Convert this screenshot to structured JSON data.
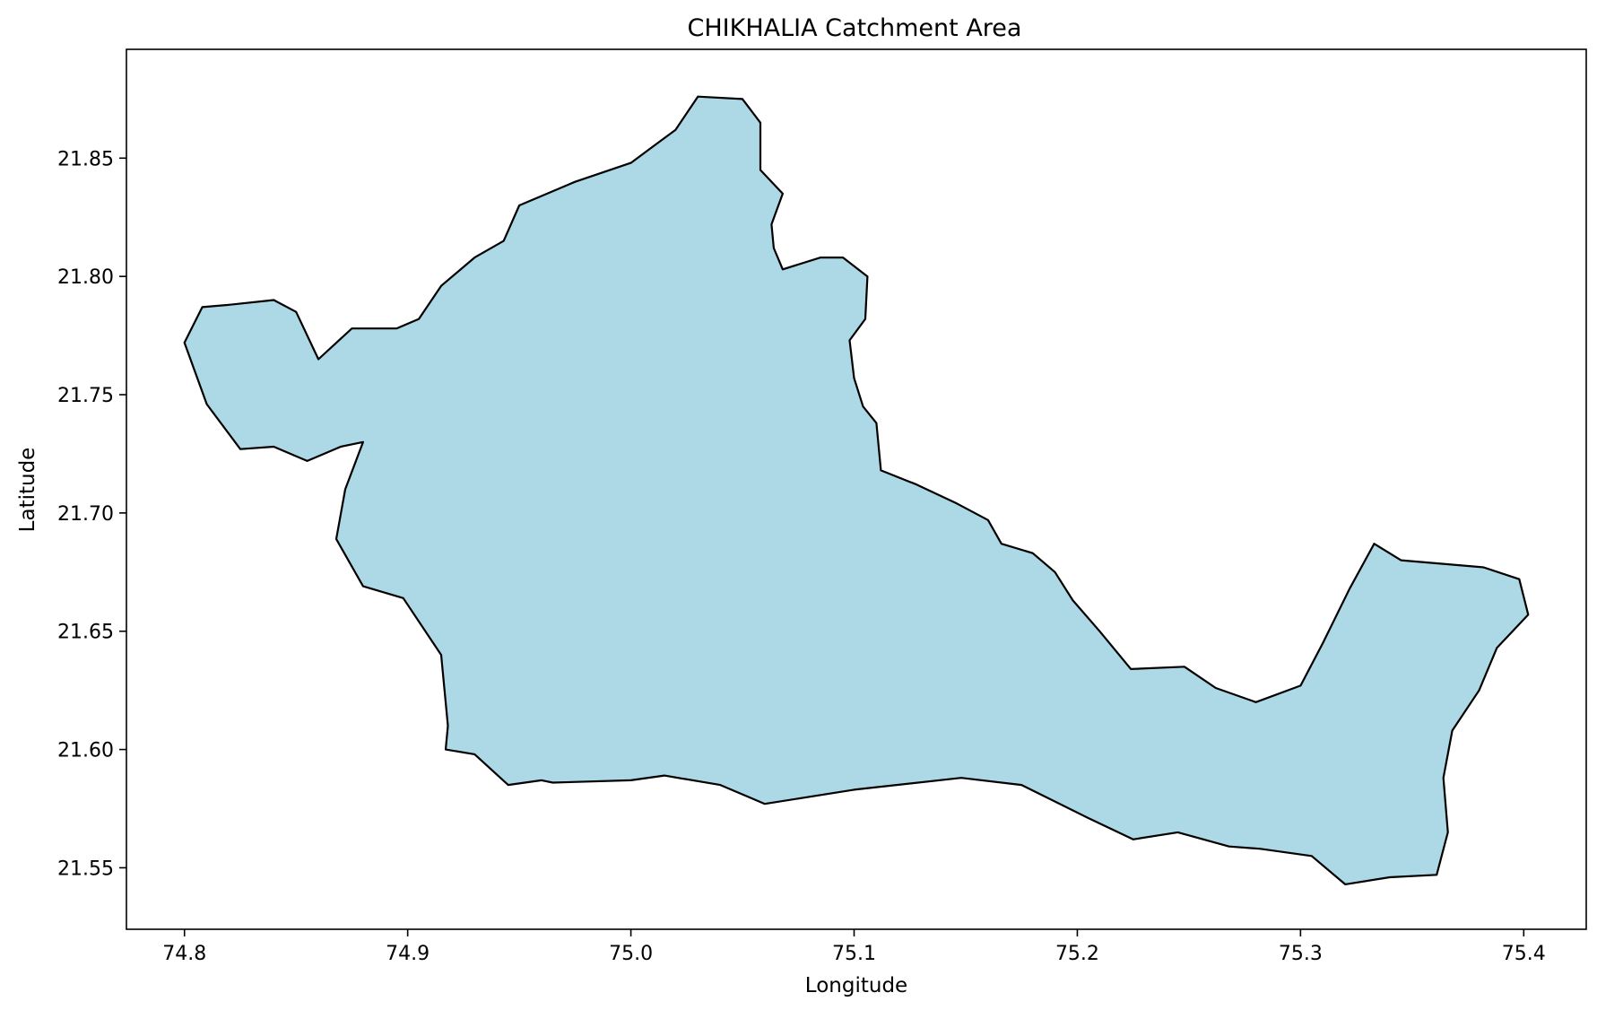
{
  "chart_data": {
    "type": "map",
    "title": "CHIKHALIA Catchment Area",
    "xlabel": "Longitude",
    "ylabel": "Latitude",
    "xlim": [
      74.774,
      75.428
    ],
    "ylim": [
      21.524,
      21.896
    ],
    "xticks": [
      74.8,
      74.9,
      75.0,
      75.1,
      75.2,
      75.3,
      75.4
    ],
    "yticks": [
      21.55,
      21.6,
      21.65,
      21.7,
      21.75,
      21.8,
      21.85
    ],
    "xtick_labels": [
      "74.8",
      "74.9",
      "75.0",
      "75.1",
      "75.2",
      "75.3",
      "75.4"
    ],
    "ytick_labels": [
      "21.55",
      "21.60",
      "21.65",
      "21.70",
      "21.75",
      "21.80",
      "21.85"
    ],
    "grid": false,
    "fill_color": "#add8e6",
    "edge_color": "#000000",
    "boundary": [
      [
        75.03,
        21.876
      ],
      [
        75.05,
        21.875
      ],
      [
        75.058,
        21.865
      ],
      [
        75.058,
        21.845
      ],
      [
        75.068,
        21.835
      ],
      [
        75.063,
        21.822
      ],
      [
        75.064,
        21.812
      ],
      [
        75.068,
        21.803
      ],
      [
        75.085,
        21.808
      ],
      [
        75.095,
        21.808
      ],
      [
        75.106,
        21.8
      ],
      [
        75.105,
        21.782
      ],
      [
        75.098,
        21.773
      ],
      [
        75.1,
        21.757
      ],
      [
        75.104,
        21.745
      ],
      [
        75.11,
        21.738
      ],
      [
        75.112,
        21.718
      ],
      [
        75.128,
        21.712
      ],
      [
        75.146,
        21.704
      ],
      [
        75.16,
        21.697
      ],
      [
        75.166,
        21.687
      ],
      [
        75.18,
        21.683
      ],
      [
        75.19,
        21.675
      ],
      [
        75.198,
        21.663
      ],
      [
        75.21,
        21.65
      ],
      [
        75.224,
        21.634
      ],
      [
        75.248,
        21.635
      ],
      [
        75.262,
        21.626
      ],
      [
        75.28,
        21.62
      ],
      [
        75.3,
        21.627
      ],
      [
        75.31,
        21.645
      ],
      [
        75.322,
        21.668
      ],
      [
        75.333,
        21.687
      ],
      [
        75.345,
        21.68
      ],
      [
        75.382,
        21.677
      ],
      [
        75.398,
        21.672
      ],
      [
        75.402,
        21.657
      ],
      [
        75.388,
        21.643
      ],
      [
        75.38,
        21.625
      ],
      [
        75.368,
        21.608
      ],
      [
        75.364,
        21.588
      ],
      [
        75.366,
        21.565
      ],
      [
        75.361,
        21.547
      ],
      [
        75.34,
        21.546
      ],
      [
        75.32,
        21.543
      ],
      [
        75.305,
        21.555
      ],
      [
        75.282,
        21.558
      ],
      [
        75.268,
        21.559
      ],
      [
        75.245,
        21.565
      ],
      [
        75.225,
        21.562
      ],
      [
        75.205,
        21.571
      ],
      [
        75.175,
        21.585
      ],
      [
        75.148,
        21.588
      ],
      [
        75.1,
        21.583
      ],
      [
        75.06,
        21.577
      ],
      [
        75.04,
        21.585
      ],
      [
        75.015,
        21.589
      ],
      [
        75.0,
        21.587
      ],
      [
        74.965,
        21.586
      ],
      [
        74.96,
        21.587
      ],
      [
        74.945,
        21.585
      ],
      [
        74.93,
        21.598
      ],
      [
        74.917,
        21.6
      ],
      [
        74.918,
        21.61
      ],
      [
        74.915,
        21.64
      ],
      [
        74.898,
        21.664
      ],
      [
        74.88,
        21.669
      ],
      [
        74.868,
        21.689
      ],
      [
        74.872,
        21.71
      ],
      [
        74.88,
        21.73
      ],
      [
        74.87,
        21.728
      ],
      [
        74.855,
        21.722
      ],
      [
        74.84,
        21.728
      ],
      [
        74.825,
        21.727
      ],
      [
        74.81,
        21.746
      ],
      [
        74.8,
        21.772
      ],
      [
        74.808,
        21.787
      ],
      [
        74.82,
        21.788
      ],
      [
        74.84,
        21.79
      ],
      [
        74.85,
        21.785
      ],
      [
        74.86,
        21.765
      ],
      [
        74.875,
        21.778
      ],
      [
        74.895,
        21.778
      ],
      [
        74.905,
        21.782
      ],
      [
        74.915,
        21.796
      ],
      [
        74.93,
        21.808
      ],
      [
        74.943,
        21.815
      ],
      [
        74.95,
        21.83
      ],
      [
        74.975,
        21.84
      ],
      [
        75.0,
        21.848
      ],
      [
        75.01,
        21.855
      ],
      [
        75.02,
        21.862
      ],
      [
        75.03,
        21.876
      ]
    ]
  }
}
